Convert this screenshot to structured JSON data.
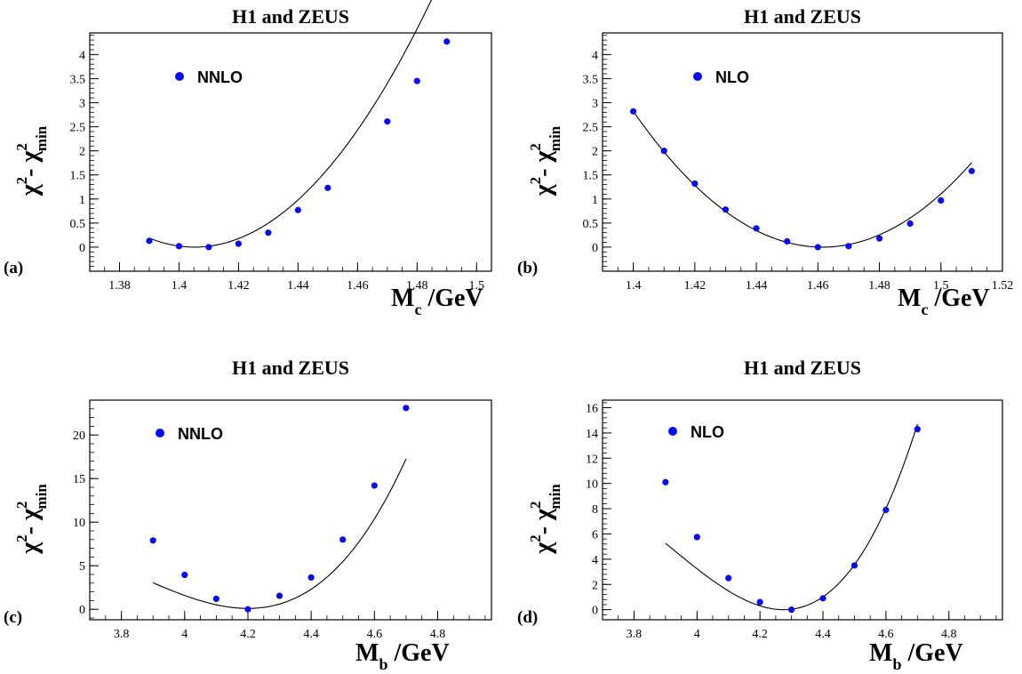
{
  "chart_data": [
    {
      "type": "scatter",
      "panel_label": "(a)",
      "title": "H1 and ZEUS",
      "xlabel": {
        "main": "M",
        "sub": "c",
        "unit": " /GeV"
      },
      "ylabel": {
        "a": "χ",
        "a_sup": "2",
        "dash": "- ",
        "b": "χ",
        "b_sup": "2",
        "b_sub": "min"
      },
      "xlim": [
        1.37,
        1.505
      ],
      "ylim": [
        -0.5,
        4.45
      ],
      "x_ticks": [
        "1.38",
        "1.4",
        "1.42",
        "1.44",
        "1.46",
        "1.48",
        "1.5"
      ],
      "y_ticks": [
        "0",
        "0.5",
        "1",
        "1.5",
        "2",
        "2.5",
        "3",
        "3.5",
        "4"
      ],
      "series": [
        {
          "name": "NNLO",
          "x": [
            1.39,
            1.4,
            1.41,
            1.42,
            1.43,
            1.44,
            1.45,
            1.47,
            1.48,
            1.49
          ],
          "y": [
            0.13,
            0.02,
            0.0,
            0.07,
            0.3,
            0.77,
            1.23,
            2.61,
            3.45,
            4.27
          ]
        }
      ],
      "fit_curve": {
        "x_range": [
          1.39,
          1.49
        ],
        "coeffs": [
          0.0,
          1.4052,
          810
        ]
      }
    },
    {
      "type": "scatter",
      "panel_label": "(b)",
      "title": "H1 and ZEUS",
      "xlabel": {
        "main": "M",
        "sub": "c",
        "unit": " /GeV"
      },
      "ylabel": {
        "a": "χ",
        "a_sup": "2",
        "dash": "- ",
        "b": "χ",
        "b_sup": "2",
        "b_sub": "min"
      },
      "xlim": [
        1.39,
        1.52
      ],
      "ylim": [
        -0.5,
        4.45
      ],
      "x_ticks": [
        "1.4",
        "1.42",
        "1.44",
        "1.46",
        "1.48",
        "1.5",
        "1.52"
      ],
      "y_ticks": [
        "0",
        "0.5",
        "1",
        "1.5",
        "2",
        "2.5",
        "3",
        "3.5",
        "4"
      ],
      "series": [
        {
          "name": "NLO",
          "x": [
            1.4,
            1.41,
            1.42,
            1.43,
            1.44,
            1.45,
            1.46,
            1.47,
            1.48,
            1.49,
            1.5,
            1.51
          ],
          "y": [
            2.82,
            2.0,
            1.32,
            0.78,
            0.39,
            0.12,
            0.0,
            0.02,
            0.18,
            0.49,
            0.97,
            1.58
          ]
        }
      ],
      "fit_curve": {
        "x_range": [
          1.4,
          1.51
        ],
        "coeffs": [
          0.0,
          1.4615,
          746
        ]
      }
    },
    {
      "type": "scatter",
      "panel_label": "(c)",
      "title": "H1 and ZEUS",
      "xlabel": {
        "main": "M",
        "sub": "b",
        "unit": " /GeV"
      },
      "ylabel": {
        "a": "χ",
        "a_sup": "2",
        "dash": "- ",
        "b": "χ",
        "b_sup": "2",
        "b_sub": "min"
      },
      "xlim": [
        3.7,
        4.97
      ],
      "ylim": [
        -1.2,
        24.0
      ],
      "x_ticks": [
        "3.8",
        "4",
        "4.2",
        "4.4",
        "4.6",
        "4.8"
      ],
      "y_ticks": [
        "0",
        "5",
        "10",
        "15",
        "20"
      ],
      "series": [
        {
          "name": "NNLO",
          "x": [
            3.9,
            4.0,
            4.1,
            4.2,
            4.3,
            4.4,
            4.5,
            4.6,
            4.7
          ],
          "y": [
            7.9,
            3.95,
            1.2,
            0.0,
            1.55,
            3.65,
            8.0,
            14.2,
            23.1
          ]
        }
      ],
      "fit_curve": {
        "x_range": [
          3.9,
          4.7
        ],
        "coeffs": [
          0.1,
          4.2,
          46.2
        ],
        "cubic": 45
      }
    },
    {
      "type": "scatter",
      "panel_label": "(d)",
      "title": "H1 and ZEUS",
      "xlabel": {
        "main": "M",
        "sub": "b",
        "unit": " /GeV"
      },
      "ylabel": {
        "a": "χ",
        "a_sup": "2",
        "dash": "- ",
        "b": "χ",
        "b_sup": "2",
        "b_sub": "min"
      },
      "xlim": [
        3.7,
        4.97
      ],
      "ylim": [
        -0.8,
        16.6
      ],
      "x_ticks": [
        "3.8",
        "4",
        "4.2",
        "4.4",
        "4.6",
        "4.8"
      ],
      "y_ticks": [
        "0",
        "2",
        "4",
        "6",
        "8",
        "10",
        "12",
        "14",
        "16"
      ],
      "series": [
        {
          "name": "NLO",
          "x": [
            3.9,
            4.0,
            4.1,
            4.2,
            4.3,
            4.4,
            4.5,
            4.6,
            4.7
          ],
          "y": [
            10.1,
            5.75,
            2.5,
            0.6,
            0.0,
            0.9,
            3.5,
            7.9,
            14.3
          ]
        }
      ],
      "fit_curve": {
        "x_range": [
          3.9,
          4.7
        ],
        "coeffs": [
          0.0,
          4.275,
          58
        ],
        "cubic": 55
      }
    }
  ],
  "colors": {
    "marker": "#0a0aee",
    "curve": "#000000",
    "axis": "#000000",
    "text": "#000000"
  }
}
